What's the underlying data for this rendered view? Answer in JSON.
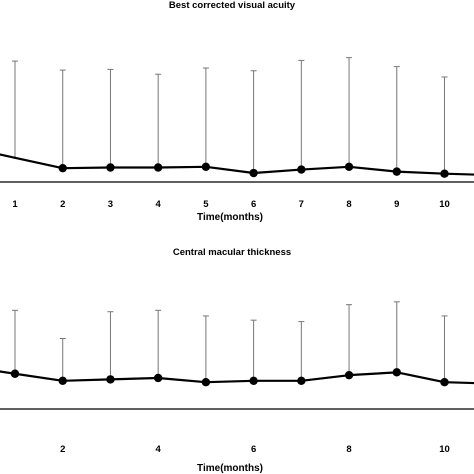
{
  "chart_data": [
    {
      "type": "line",
      "title": "Best corrected visual acuity",
      "xlabel": "Time(months)",
      "ylabel": "",
      "x": [
        0,
        1,
        2,
        3,
        4,
        5,
        6,
        7,
        8,
        9,
        10,
        11
      ],
      "tick_labels": [
        "1",
        "2",
        "3",
        "4",
        "5",
        "6",
        "7",
        "8",
        "9",
        "10"
      ],
      "tick_values": [
        1,
        2,
        3,
        4,
        5,
        6,
        7,
        8,
        9,
        10
      ],
      "series": [
        {
          "values": [
            0.3,
            0.15,
            0.0,
            0.01,
            0.01,
            0.02,
            -0.07,
            -0.02,
            0.02,
            -0.05,
            -0.08,
            -0.1
          ],
          "error_upper": [
            1.5,
            1.55,
            1.42,
            1.43,
            1.36,
            1.45,
            1.41,
            1.56,
            1.6,
            1.47,
            1.32,
            null
          ],
          "marker_visible": [
            false,
            false,
            true,
            true,
            true,
            true,
            true,
            true,
            true,
            true,
            true,
            false
          ]
        }
      ],
      "ylim": [
        -0.2,
        2.0
      ],
      "grid": false,
      "legend": "none"
    },
    {
      "type": "line",
      "title": "Central macular thickness",
      "xlabel": "Time(months)",
      "ylabel": "",
      "x": [
        0,
        1,
        2,
        3,
        4,
        5,
        6,
        7,
        8,
        9,
        10,
        11
      ],
      "tick_labels": [
        "2",
        "4",
        "6",
        "8",
        "10"
      ],
      "tick_values": [
        2,
        4,
        6,
        8,
        10
      ],
      "series": [
        {
          "values": [
            300,
            275,
            250,
            255,
            260,
            245,
            250,
            250,
            270,
            280,
            245,
            240
          ],
          "error_upper": [
            490,
            500,
            400,
            495,
            500,
            480,
            465,
            460,
            520,
            530,
            480,
            null
          ],
          "marker_visible": [
            false,
            true,
            true,
            true,
            true,
            true,
            true,
            true,
            true,
            true,
            true,
            false
          ]
        }
      ],
      "ylim": [
        150,
        650
      ],
      "grid": false,
      "legend": "none"
    }
  ]
}
